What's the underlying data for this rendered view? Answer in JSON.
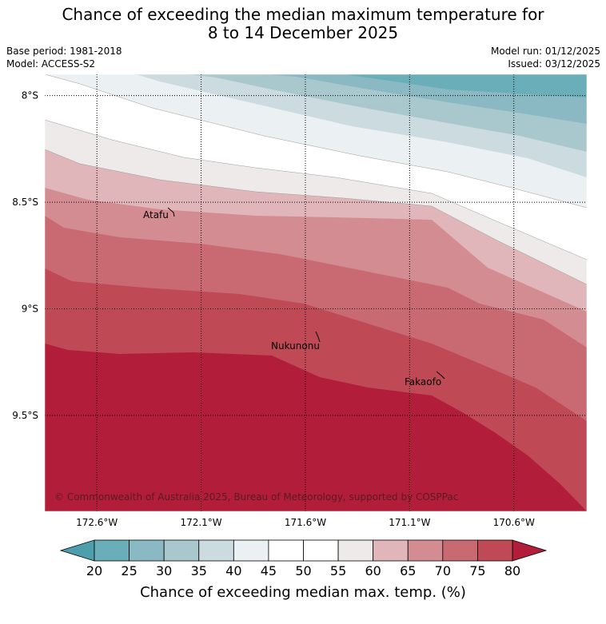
{
  "title": {
    "line1": "Chance of exceeding the median maximum temperature for",
    "line2": "8 to 14 December 2025"
  },
  "meta": {
    "base_period": "Base period: 1981-2018",
    "model": "Model: ACCESS-S2",
    "model_run": "Model run: 01/12/2025",
    "issued": "Issued: 03/12/2025"
  },
  "map": {
    "lat_labels": [
      "8°S",
      "8.5°S",
      "9°S",
      "9.5°S"
    ],
    "lat_values": [
      8.0,
      8.5,
      9.0,
      9.5
    ],
    "lon_labels": [
      "172.6°W",
      "172.1°W",
      "171.6°W",
      "171.1°W",
      "170.6°W"
    ],
    "lon_values": [
      172.6,
      172.1,
      171.6,
      171.1,
      170.6
    ],
    "islands": [
      {
        "name": "Atafu"
      },
      {
        "name": "Nukunonu"
      },
      {
        "name": "Fakaofo"
      }
    ],
    "copyright": "© Commonwealth of Australia 2025, Bureau of Meteorology, supported by COSPPac"
  },
  "colorbar": {
    "ticks": [
      "20",
      "25",
      "30",
      "35",
      "40",
      "45",
      "50",
      "55",
      "60",
      "65",
      "70",
      "75",
      "80"
    ],
    "under_color": "#4e9fae",
    "over_color": "#b21e3a",
    "colors": [
      "#6aaeb9",
      "#8ab9c3",
      "#a9c8cd",
      "#cbdbdf",
      "#ebf0f2",
      "#ffffff",
      "#ffffff",
      "#eeeae9",
      "#e1b6ba",
      "#d48c93",
      "#c96a73",
      "#bf4a56"
    ],
    "label": "Chance of exceeding median max. temp. (%)"
  }
}
